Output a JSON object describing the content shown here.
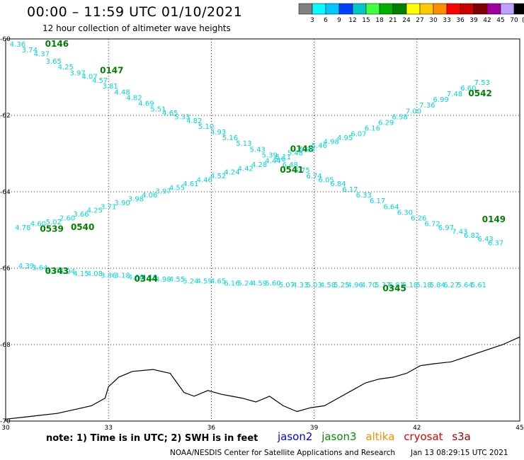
{
  "header": {
    "title": "00:00 – 11:59 UTC 01/10/2021",
    "subtitle": "12 hour collection of altimeter wave heights"
  },
  "colorbar": {
    "labels": [
      "3",
      "6",
      "9",
      "12",
      "15",
      "18",
      "21",
      "24",
      "27",
      "30",
      "33",
      "36",
      "39",
      "42",
      "45",
      "70"
    ],
    "colors": [
      "#808080",
      "#00ffff",
      "#00c8ff",
      "#0040ff",
      "#00c8c8",
      "#40ff40",
      "#00b000",
      "#008000",
      "#ffff00",
      "#ffc800",
      "#ff8c00",
      "#ff0000",
      "#c80000",
      "#800000",
      "#a000a0",
      "#c0a0ff",
      "#000000"
    ],
    "unit": "(ft)"
  },
  "axes": {
    "x_ticks": [
      "30",
      "33",
      "36",
      "39",
      "42",
      "45"
    ],
    "y_ticks": [
      "-60",
      "-62",
      "-64",
      "-66",
      "-68",
      "-70"
    ],
    "lon_range": [
      30,
      45
    ],
    "lat_range": [
      -70,
      -60
    ],
    "grid": true
  },
  "tracks": [
    {
      "id": "0146",
      "label_lon": 31.15,
      "label_lat": -60.2,
      "points": [
        [
          30.35,
          -60.2,
          "4.36"
        ],
        [
          30.7,
          -60.35,
          "3.74"
        ],
        [
          31.05,
          -60.45,
          "4.37"
        ],
        [
          31.4,
          -60.65,
          "3.65"
        ],
        [
          31.75,
          -60.8,
          "4.25"
        ],
        [
          32.1,
          -60.95,
          "3.97"
        ],
        [
          32.45,
          -61.05,
          "4.07"
        ],
        [
          32.75,
          -61.15,
          "4.57"
        ]
      ]
    },
    {
      "id": "0147",
      "label_lon": 32.75,
      "label_lat": -60.9,
      "points": [
        [
          33.05,
          -61.3,
          "3.81"
        ],
        [
          33.4,
          -61.45,
          "4.48"
        ],
        [
          33.75,
          -61.6,
          "4.82"
        ],
        [
          34.1,
          -61.75,
          "4.69"
        ],
        [
          34.45,
          -61.9,
          "5.51"
        ],
        [
          34.8,
          -62.0,
          "4.65"
        ],
        [
          35.15,
          -62.1,
          "5.33"
        ],
        [
          35.5,
          -62.2,
          "4.82"
        ],
        [
          35.85,
          -62.35,
          "5.10"
        ],
        [
          36.2,
          -62.5,
          "4.93"
        ],
        [
          36.55,
          -62.65,
          "5.16"
        ],
        [
          36.95,
          -62.8,
          "5.13"
        ],
        [
          37.35,
          -62.95,
          "5.43"
        ]
      ]
    },
    {
      "id": "0148",
      "label_lon": 38.3,
      "label_lat": -62.95,
      "points": [
        [
          37.7,
          -63.1,
          "5.39"
        ],
        [
          38.0,
          -63.2,
          "5.6"
        ],
        [
          38.3,
          -63.35,
          "6.48"
        ],
        [
          38.65,
          -63.5,
          "5.75"
        ],
        [
          39.0,
          -63.65,
          "6.74"
        ],
        [
          39.35,
          -63.75,
          "6.05"
        ],
        [
          39.7,
          -63.85,
          "6.84"
        ],
        [
          40.05,
          -64.0,
          "6.17"
        ],
        [
          40.45,
          -64.15,
          "6.33"
        ],
        [
          40.85,
          -64.3,
          "6.17"
        ],
        [
          41.25,
          -64.45,
          "6.64"
        ],
        [
          41.65,
          -64.6,
          "6.30"
        ],
        [
          42.05,
          -64.75,
          "6.26"
        ],
        [
          42.45,
          -64.9,
          "6.72"
        ],
        [
          42.85,
          -65.0,
          "6.97"
        ],
        [
          43.25,
          -65.1,
          "7.43"
        ],
        [
          43.6,
          -65.2,
          "6.82"
        ],
        [
          44.0,
          -65.3,
          "6.43"
        ],
        [
          44.3,
          -65.4,
          "6.37"
        ]
      ]
    },
    {
      "id": "0149",
      "label_lon": 43.9,
      "label_lat": -64.8,
      "points": []
    },
    {
      "id": "0539",
      "label_lon": 31.0,
      "label_lat": -65.05,
      "points": [
        [
          30.5,
          -65.0,
          "4.78"
        ],
        [
          30.95,
          -64.9,
          "4.60"
        ],
        [
          31.4,
          -64.85,
          "5.02"
        ],
        [
          31.8,
          -64.75,
          "2.60"
        ],
        [
          32.2,
          -64.65,
          "3.66"
        ],
        [
          32.6,
          -64.55,
          "4.25"
        ],
        [
          33.0,
          -64.45,
          "3.71"
        ],
        [
          33.4,
          -64.35,
          "3.90"
        ],
        [
          33.8,
          -64.25,
          "3.98"
        ],
        [
          34.2,
          -64.15,
          "4.06"
        ],
        [
          34.6,
          -64.05,
          "3.97"
        ],
        [
          35.0,
          -63.95,
          "4.55"
        ],
        [
          35.4,
          -63.85,
          "4.61"
        ],
        [
          35.8,
          -63.75,
          "4.46"
        ],
        [
          36.2,
          -63.65,
          "4.52"
        ],
        [
          36.6,
          -63.55,
          "4.24"
        ],
        [
          37.0,
          -63.45,
          "4.42"
        ],
        [
          37.4,
          -63.35,
          "4.28"
        ],
        [
          37.8,
          -63.25,
          "4.44"
        ],
        [
          38.1,
          -63.15,
          "5.11"
        ],
        [
          38.45,
          -63.05,
          "5.48"
        ],
        [
          38.8,
          -62.95,
          "5.08"
        ],
        [
          39.15,
          -62.85,
          "5.46"
        ],
        [
          39.5,
          -62.75,
          "4.98"
        ],
        [
          39.9,
          -62.65,
          "4.95"
        ],
        [
          40.3,
          -62.55,
          "6.07"
        ],
        [
          40.7,
          -62.4,
          "6.16"
        ],
        [
          41.1,
          -62.25,
          "6.29"
        ],
        [
          41.5,
          -62.1,
          "6.58"
        ],
        [
          41.9,
          -61.95,
          "7.00"
        ],
        [
          42.3,
          -61.8,
          "7.36"
        ],
        [
          42.7,
          -61.65,
          "6.99"
        ],
        [
          43.1,
          -61.5,
          "7.48"
        ],
        [
          43.5,
          -61.35,
          "6.60"
        ],
        [
          43.9,
          -61.2,
          "7.53"
        ]
      ]
    },
    {
      "id": "0540",
      "label_lon": 31.9,
      "label_lat": -65.0,
      "points": []
    },
    {
      "id": "0541",
      "label_lon": 38.0,
      "label_lat": -63.5,
      "points": []
    },
    {
      "id": "0542",
      "label_lon": 43.5,
      "label_lat": -61.5,
      "points": []
    },
    {
      "id": "0343",
      "label_lon": 31.15,
      "label_lat": -66.15,
      "points": [
        [
          30.6,
          -66.0,
          "4.39"
        ],
        [
          31.0,
          -66.05,
          "3.64"
        ],
        [
          31.4,
          -66.1,
          "4.16"
        ],
        [
          31.8,
          -66.15,
          "3.94"
        ],
        [
          32.2,
          -66.2,
          "4.15"
        ],
        [
          32.6,
          -66.2,
          "4.08"
        ],
        [
          33.0,
          -66.25,
          "3.86"
        ],
        [
          33.4,
          -66.25,
          "3.18"
        ],
        [
          33.8,
          -66.3,
          "4.66"
        ]
      ]
    },
    {
      "id": "0344",
      "label_lon": 33.75,
      "label_lat": -66.35,
      "points": [
        [
          34.2,
          -66.3,
          "4.19"
        ],
        [
          34.6,
          -66.35,
          "4.98"
        ],
        [
          35.0,
          -66.35,
          "4.55"
        ],
        [
          35.4,
          -66.4,
          "5.24"
        ],
        [
          35.8,
          -66.4,
          "4.59"
        ],
        [
          36.2,
          -66.4,
          "4.65"
        ],
        [
          36.6,
          -66.45,
          "6.16"
        ],
        [
          37.0,
          -66.45,
          "5.24"
        ],
        [
          37.4,
          -66.45,
          "4.59"
        ],
        [
          37.8,
          -66.45,
          "5.60"
        ],
        [
          38.2,
          -66.5,
          "5.07"
        ],
        [
          38.6,
          -66.5,
          "4.33"
        ],
        [
          39.0,
          -66.5,
          "5.03"
        ],
        [
          39.4,
          -66.5,
          "4.58"
        ],
        [
          39.8,
          -66.5,
          "5.25"
        ],
        [
          40.2,
          -66.5,
          "4.96"
        ],
        [
          40.6,
          -66.5,
          "4.70"
        ],
        [
          41.0,
          -66.5,
          "5.37"
        ],
        [
          41.4,
          -66.5,
          "5.81"
        ],
        [
          41.8,
          -66.5,
          "5.18"
        ],
        [
          42.2,
          -66.5,
          "5.18"
        ],
        [
          42.6,
          -66.5,
          "5.84"
        ],
        [
          43.0,
          -66.5,
          "6.27"
        ],
        [
          43.4,
          -66.5,
          "5.64"
        ],
        [
          43.8,
          -66.5,
          "5.61"
        ]
      ]
    },
    {
      "id": "0345",
      "label_lon": 41.0,
      "label_lat": -66.6,
      "points": []
    }
  ],
  "coastline": [
    [
      30,
      -69.95
    ],
    [
      30.5,
      -69.9
    ],
    [
      31,
      -69.85
    ],
    [
      31.5,
      -69.8
    ],
    [
      32,
      -69.7
    ],
    [
      32.5,
      -69.6
    ],
    [
      32.9,
      -69.4
    ],
    [
      33.0,
      -69.1
    ],
    [
      33.3,
      -68.85
    ],
    [
      33.7,
      -68.7
    ],
    [
      34.3,
      -68.65
    ],
    [
      34.8,
      -68.75
    ],
    [
      35.0,
      -69.0
    ],
    [
      35.2,
      -69.25
    ],
    [
      35.5,
      -69.35
    ],
    [
      35.9,
      -69.2
    ],
    [
      36.3,
      -69.3
    ],
    [
      36.6,
      -69.35
    ],
    [
      36.9,
      -69.4
    ],
    [
      37.3,
      -69.5
    ],
    [
      37.7,
      -69.35
    ],
    [
      38.1,
      -69.6
    ],
    [
      38.5,
      -69.75
    ],
    [
      38.9,
      -69.65
    ],
    [
      39.3,
      -69.6
    ],
    [
      39.7,
      -69.4
    ],
    [
      40.1,
      -69.2
    ],
    [
      40.5,
      -69.0
    ],
    [
      40.9,
      -68.9
    ],
    [
      41.3,
      -68.85
    ],
    [
      41.7,
      -68.75
    ],
    [
      42.1,
      -68.55
    ],
    [
      42.5,
      -68.5
    ],
    [
      43.0,
      -68.45
    ],
    [
      43.5,
      -68.3
    ],
    [
      44.0,
      -68.15
    ],
    [
      44.5,
      -68.0
    ],
    [
      45,
      -67.8
    ]
  ],
  "note": "note: 1) Time is in UTC; 2) SWH is in feet",
  "satellites": [
    {
      "name": "jason2",
      "color": "#0000ff"
    },
    {
      "name": "jason3",
      "color": "#009000"
    },
    {
      "name": "altika",
      "color": "#ff8c00"
    },
    {
      "name": "cryosat",
      "color": "#e00000"
    },
    {
      "name": "s3a",
      "color": "#a00000"
    }
  ],
  "footer": {
    "center": "NOAA/NESDIS Center for Satellite Applications and Research",
    "timestamp": "Jan 13 08:29:15 UTC 2021"
  },
  "track_value_color": "#00d8d8",
  "track_label_color": "#008000"
}
